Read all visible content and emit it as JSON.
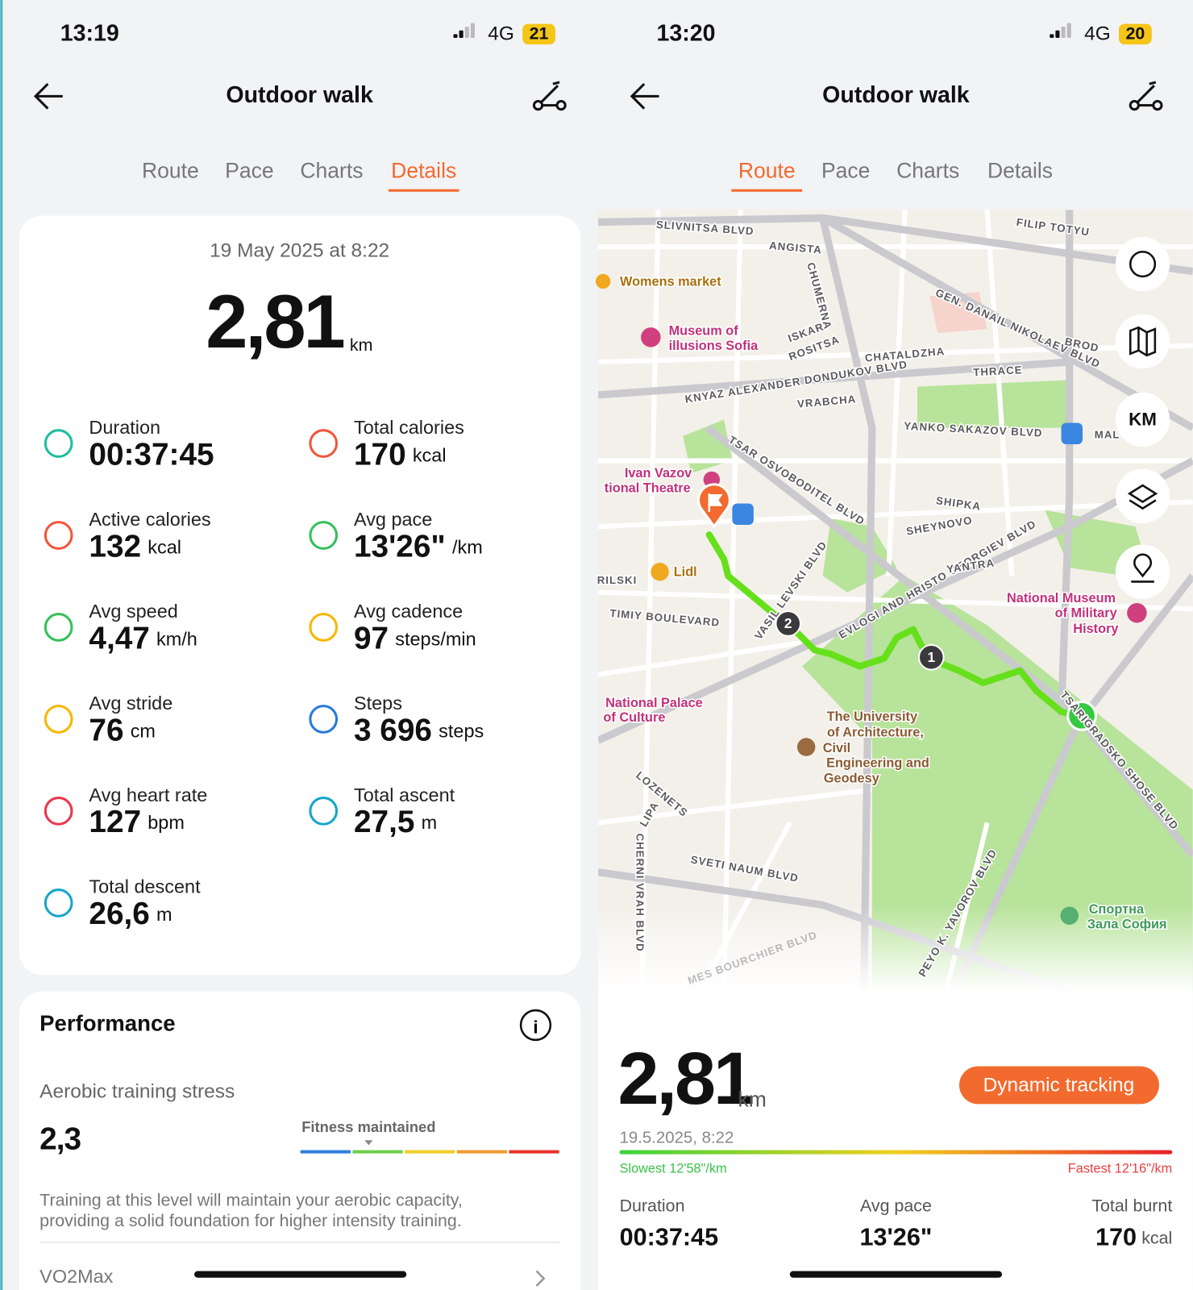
{
  "left": {
    "status": {
      "time": "13:19",
      "network": "4G",
      "battery": "21"
    },
    "header": {
      "title": "Outdoor walk"
    },
    "tabs": [
      "Route",
      "Pace",
      "Charts",
      "Details"
    ],
    "active_tab": 3,
    "summary": {
      "date": "19 May 2025 at 8:22",
      "distance": "2,81",
      "unit": "km"
    },
    "metrics": [
      {
        "label": "Duration",
        "value": "00:37:45"
      },
      {
        "label": "Total calories",
        "value": "170",
        "unit": "kcal"
      },
      {
        "label": "Active calories",
        "value": "132",
        "unit": "kcal"
      },
      {
        "label": "Avg pace",
        "value": "13'26\"",
        "unit": "/km"
      },
      {
        "label": "Avg speed",
        "value": "4,47",
        "unit": "km/h"
      },
      {
        "label": "Avg cadence",
        "value": "97",
        "unit": "steps/min"
      },
      {
        "label": "Avg stride",
        "value": "76",
        "unit": "cm"
      },
      {
        "label": "Steps",
        "value": "3 696",
        "unit": "steps"
      },
      {
        "label": "Avg heart rate",
        "value": "127",
        "unit": "bpm"
      },
      {
        "label": "Total ascent",
        "value": "27,5",
        "unit": "m"
      },
      {
        "label": "Total descent",
        "value": "26,6",
        "unit": "m"
      }
    ],
    "performance": {
      "title": "Performance",
      "metric": "Aerobic training stress",
      "value": "2,3",
      "status": "Fitness maintained",
      "description": [
        "Training at this level will maintain your aerobic capacity,",
        "providing a solid foundation for higher intensity training."
      ],
      "next": "VO2Max"
    }
  },
  "right": {
    "status": {
      "time": "13:20",
      "network": "4G",
      "battery": "20"
    },
    "header": {
      "title": "Outdoor walk"
    },
    "tabs": [
      "Route",
      "Pace",
      "Charts",
      "Details"
    ],
    "active_tab": 0,
    "map": {
      "labels": [
        "SLIVNITSA BLVD",
        "ANGISTA",
        "FILIP TOTYU",
        "Womens market",
        "Museum of",
        "illusions Sofia",
        "CHUMERNA",
        "ISKAR",
        "ROSITSA",
        "GEN. DANAIL NIKOLAEV BLVD",
        "BROD",
        "CHATALDZHA",
        "THRACE",
        "KNYAZ ALEXANDER DONDUKOV BLVD",
        "VRABCHA",
        "YANKO SAKAZOV BLVD",
        "MAL",
        "TSAR OSVOBODITEL BLVD",
        "Ivan Vazov",
        "tional Theatre",
        "SHIPKA",
        "SHEYNOVO",
        "EVLOGI AND HRISTO GEORGIEV BLVD",
        "YANTRA",
        "Lidl",
        "RILSKI",
        "VASIL LEVSKI BLVD",
        "TIMIY BOULEVARD",
        "National Museum",
        "of Military",
        "History",
        "National Palace",
        "of Culture",
        "The University",
        "of Architecture,",
        "Civil",
        "Engineering and",
        "Geodesy",
        "TSARIGRADSKO SHOSE BLVD",
        "LOZENETS",
        "LIPA",
        "CHERNI VRAH BLVD",
        "SVETI NAUM BLVD",
        "PEYO K. YAVOROV BLVD",
        "MES BOURCHIER BLVD",
        "Спортна",
        "Зала София"
      ],
      "markers": [
        "2",
        "1"
      ],
      "unit_control": "KM"
    },
    "summary": {
      "distance": "2,81",
      "unit": "km",
      "date": "19.5.2025, 8:22",
      "button": "Dynamic tracking",
      "slowest": "Slowest 12'58\"/km",
      "fastest": "Fastest 12'16\"/km"
    },
    "stats": [
      {
        "label": "Duration",
        "value": "00:37:45"
      },
      {
        "label": "Avg pace",
        "value": "13'26\""
      },
      {
        "label": "Total burnt",
        "value": "170",
        "unit": "kcal"
      }
    ]
  }
}
